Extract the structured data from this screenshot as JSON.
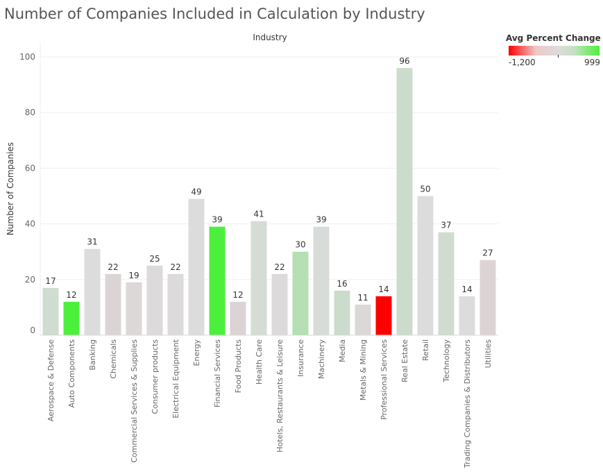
{
  "chart_data": {
    "type": "bar",
    "title": "Number of Companies Included in Calculation by Industry",
    "header_label": "Industry",
    "xlabel": "Industry",
    "ylabel": "Number of Companies",
    "ylim": [
      0,
      105
    ],
    "yticks": [
      0,
      20,
      40,
      60,
      80,
      100
    ],
    "grid": true,
    "categories": [
      "Aerospace & Defense",
      "Auto Components",
      "Banking",
      "Chemicals",
      "Commercial Services & Supplies",
      "Consumer products",
      "Electrical Equipment",
      "Energy",
      "Financial Services",
      "Food Products",
      "Health Care",
      "Hotels, Restaurants & Leisure",
      "Insurance",
      "Machinery",
      "Media",
      "Metals & Mining",
      "Professional Services",
      "Real Estate",
      "Retail",
      "Technology",
      "Trading Companies & Distributors",
      "Utilities"
    ],
    "values": [
      17,
      12,
      31,
      22,
      19,
      25,
      22,
      49,
      39,
      12,
      41,
      22,
      30,
      39,
      16,
      11,
      14,
      96,
      50,
      37,
      14,
      27
    ],
    "colors": [
      "#d0dcd0",
      "#4cf03c",
      "#dcdcdc",
      "#dcd4d4",
      "#dcd8d8",
      "#dcdada",
      "#dcdada",
      "#dcdcdc",
      "#4cf03c",
      "#dcd4d4",
      "#d4dcd4",
      "#dcdada",
      "#b4e0b4",
      "#d8dcd8",
      "#ccdccc",
      "#dcd8d8",
      "#ff0000",
      "#ccdccc",
      "#dcdcdc",
      "#d0dcd0",
      "#dcdcdc",
      "#dcd4d4"
    ],
    "legend": {
      "title": "Avg Percent Change",
      "min_label": "-1,200",
      "max_label": "999",
      "colors": [
        "#ff0000",
        "#dcdcdc",
        "#4cf03c"
      ],
      "placement": "top-right"
    }
  }
}
